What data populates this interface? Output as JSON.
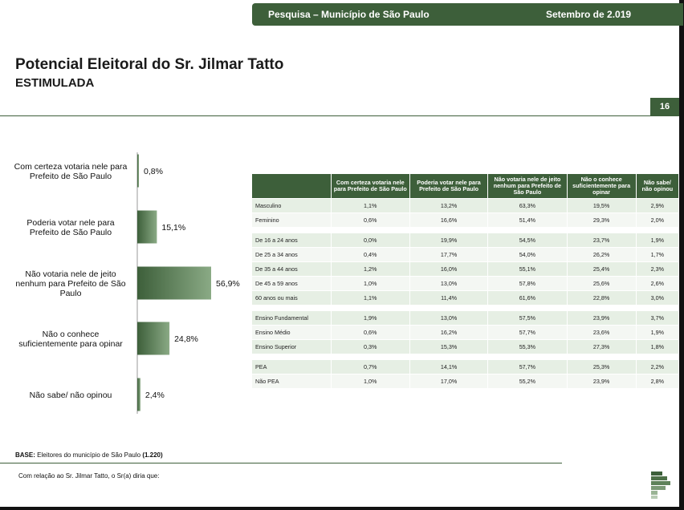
{
  "header": {
    "survey": "Pesquisa – Município de São Paulo",
    "date": "Setembro de 2.019"
  },
  "page": {
    "title": "Potencial Eleitoral do Sr. Jilmar Tatto",
    "subtitle": "ESTIMULADA",
    "number": "16"
  },
  "chart_data": {
    "type": "bar",
    "orientation": "horizontal",
    "categories": [
      [
        "Com certeza votaria nele para",
        "Prefeito de São Paulo"
      ],
      [
        "Poderia votar nele para",
        "Prefeito de São Paulo"
      ],
      [
        "Não votaria nele de jeito",
        "nenhum para Prefeito de São",
        "Paulo"
      ],
      [
        "Não o conhece",
        "suficientemente para opinar"
      ],
      [
        "Não sabe/ não opinou"
      ]
    ],
    "values": [
      0.8,
      15.1,
      56.9,
      24.8,
      2.4
    ],
    "value_labels": [
      "0,8%",
      "15,1%",
      "56,9%",
      "24,8%",
      "2,4%"
    ],
    "colors": {
      "bar_dark": "#3d5f3a",
      "bar_light": "#8aaa85"
    },
    "xlim": [
      0,
      56.9
    ]
  },
  "table": {
    "columns": [
      "",
      "Com certeza votaria nele para Prefeito de São Paulo",
      "Poderia votar nele para Prefeito de São Paulo",
      "Não votaria nele de jeito nenhum para Prefeito de São Paulo",
      "Não o conhece suficientemente para opinar",
      "Não sabe/ não opinou"
    ],
    "groups": [
      [
        [
          "Masculino",
          "1,1%",
          "13,2%",
          "63,3%",
          "19,5%",
          "2,9%"
        ],
        [
          "Feminino",
          "0,6%",
          "16,6%",
          "51,4%",
          "29,3%",
          "2,0%"
        ]
      ],
      [
        [
          "De 16 a 24 anos",
          "0,0%",
          "19,9%",
          "54,5%",
          "23,7%",
          "1,9%"
        ],
        [
          "De 25 a 34 anos",
          "0,4%",
          "17,7%",
          "54,0%",
          "26,2%",
          "1,7%"
        ],
        [
          "De 35 a 44 anos",
          "1,2%",
          "16,0%",
          "55,1%",
          "25,4%",
          "2,3%"
        ],
        [
          "De 45 a 59 anos",
          "1,0%",
          "13,0%",
          "57,8%",
          "25,6%",
          "2,6%"
        ],
        [
          "60 anos ou mais",
          "1,1%",
          "11,4%",
          "61,6%",
          "22,8%",
          "3,0%"
        ]
      ],
      [
        [
          "Ensino Fundamental",
          "1,9%",
          "13,0%",
          "57,5%",
          "23,9%",
          "3,7%"
        ],
        [
          "Ensino Médio",
          "0,6%",
          "16,2%",
          "57,7%",
          "23,6%",
          "1,9%"
        ],
        [
          "Ensino Superior",
          "0,3%",
          "15,3%",
          "55,3%",
          "27,3%",
          "1,8%"
        ]
      ],
      [
        [
          "PEA",
          "0,7%",
          "14,1%",
          "57,7%",
          "25,3%",
          "2,2%"
        ],
        [
          "Não PEA",
          "1,0%",
          "17,0%",
          "55,2%",
          "23,9%",
          "2,8%"
        ]
      ]
    ]
  },
  "footer": {
    "base_label": "BASE:",
    "base_text": " Eleitores do município de São Paulo ",
    "base_n": "(1.220)",
    "question": "Com relação ao Sr. Jilmar Tatto, o Sr(a) diria que:"
  }
}
